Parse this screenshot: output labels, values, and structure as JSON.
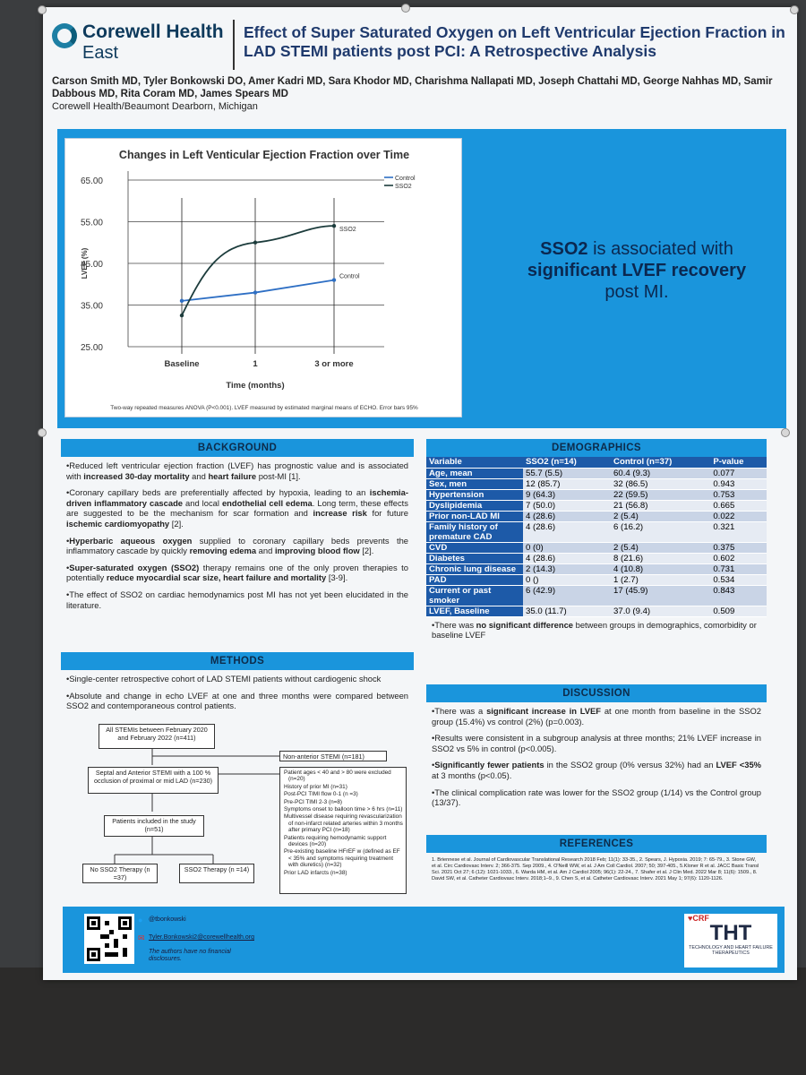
{
  "header": {
    "brand_name": "Corewell Health",
    "brand_sub": "East",
    "title": "Effect of Super Saturated Oxygen on Left Ventricular Ejection Fraction in LAD STEMI patients post PCI: A Retrospective Analysis",
    "authors": "Carson Smith MD, Tyler Bonkowski DO, Amer Kadri MD, Sara Khodor MD, Charishma Nallapati MD, Joseph Chattahi MD, George Nahhas MD, Samir Dabbous MD, Rita Coram MD, James Spears MD",
    "affiliation": "Corewell Health/Beaumont Dearborn, Michigan"
  },
  "key_message": {
    "part1": "SSO2",
    "part2": " is associated with ",
    "part3": "significant LVEF recovery",
    "part4": " post MI."
  },
  "chart_data": {
    "type": "line",
    "title": "Changes in Left Venticular Ejection Fraction over Time",
    "xlabel": "Time (months)",
    "ylabel": "LVEF (%)",
    "categories": [
      "Baseline",
      "1",
      "3 or more"
    ],
    "y_ticks": [
      "25.00",
      "35.00",
      "45.00",
      "55.00",
      "65.00"
    ],
    "ylim": [
      25,
      65
    ],
    "series": [
      {
        "name": "Control",
        "values": [
          36,
          38,
          41
        ],
        "color": "#2e6fc4"
      },
      {
        "name": "SSO2",
        "values": [
          32.5,
          50,
          54
        ],
        "color": "#1c3c3c"
      }
    ],
    "legend": [
      "Control",
      "SSO2"
    ],
    "annotations": [
      "SSO2",
      "Control"
    ],
    "footnote": "Two-way repeated measures ANOVA (P<0.001). LVEF measured by estimated marginal means of ECHO. Error bars 95%",
    "legend_position": "top-right",
    "grid": true
  },
  "background": {
    "heading": "BACKGROUND",
    "p1": [
      "•Reduced left ventricular ejection fraction (LVEF) has prognostic value and is associated with ",
      "increased 30-day mortality",
      " and ",
      "heart failure",
      " post-MI [1]."
    ],
    "p2": [
      "•Coronary capillary beds are preferentially affected by hypoxia, leading to an ",
      "ischemia-driven inflammatory cascade",
      " and local ",
      "endothelial cell edema",
      ". Long term, these effects are suggested to be the mechanism for scar formation and ",
      "increase risk",
      " for future ",
      "ischemic cardiomyopathy",
      " [2]."
    ],
    "p3": [
      "•",
      "Hyperbaric aqueous oxygen",
      " supplied to coronary capillary beds prevents the inflammatory cascade by quickly ",
      "removing edema",
      " and ",
      "improving blood flow",
      " [2]."
    ],
    "p4": [
      "•",
      "Super-saturated oxygen (SSO2)",
      " therapy remains one of the only proven therapies to potentially ",
      "reduce myocardial scar size, heart failure and mortality",
      " [3-9]."
    ],
    "p5": "•The effect of SSO2 on cardiac hemodynamics post MI has not yet been elucidated in the literature."
  },
  "methods": {
    "heading": "METHODS",
    "p1": "•Single-center retrospective cohort of LAD STEMI patients without cardiogenic shock",
    "p2": "•Absolute and change in echo LVEF at one and three months were compared between SSO2 and contemporaneous control patients.",
    "flow": {
      "box1": "All STEMIs between February 2020 and February 2022 (n=411)",
      "box2": "Non-anterior STEMI (n=181)",
      "box3": "Septal and Anterior STEMI with a 100 % occlusion of proximal or mid LAD (n=230)",
      "exclusions": [
        "Patient ages < 40 and > 80 were excluded (n=20)",
        "History of prior MI (n=31)",
        "Post-PCI TIMI flow 0-1 (n =3)",
        "Pre-PCI TIMI 2-3 (n=8)",
        "Symptoms onset to balloon time > 6 hrs (n=11)",
        "Multivessel disease requiring revascularization of non-infarct related arteries within 3 months after primary PCI (n=18)",
        "Patients requiring hemodynamic support devices (n=20)",
        "Pre-existing baseline HFrEF w (defined as EF < 35% and symptoms requiring treatment with diuretics) (n=32)",
        "Prior LAD infarcts (n=38)"
      ],
      "box4": "Patients included in the study (n=51)",
      "box5": "No SSO2 Therapy (n =37)",
      "box6": "SSO2 Therapy (n =14)"
    }
  },
  "demographics": {
    "heading": "DEMOGRAPHICS",
    "columns": [
      "Variable",
      "SSO2 (n=14)",
      "Control (n=37)",
      "P-value"
    ],
    "rows": [
      [
        "Age, mean",
        "55.7 (5.5)",
        "60.4 (9.3)",
        "0.077"
      ],
      [
        "Sex, men",
        "12 (85.7)",
        "32 (86.5)",
        "0.943"
      ],
      [
        "Hypertension",
        "9 (64.3)",
        "22 (59.5)",
        "0.753"
      ],
      [
        "Dyslipidemia",
        "7 (50.0)",
        "21 (56.8)",
        "0.665"
      ],
      [
        "Prior non-LAD MI",
        "4 (28.6)",
        "2 (5.4)",
        "0.022"
      ],
      [
        "Family history of premature CAD",
        "4 (28.6)",
        "6 (16.2)",
        "0.321"
      ],
      [
        "CVD",
        "0 (0)",
        "2 (5.4)",
        "0.375"
      ],
      [
        "Diabetes",
        "4 (28.6)",
        "8 (21.6)",
        "0.602"
      ],
      [
        "Chronic lung disease",
        "2 (14.3)",
        "4 (10.8)",
        "0.731"
      ],
      [
        "PAD",
        "0 ()",
        "1 (2.7)",
        "0.534"
      ],
      [
        "Current or past smoker",
        "6 (42.9)",
        "17 (45.9)",
        "0.843"
      ],
      [
        "LVEF, Baseline",
        "35.0 (11.7)",
        "37.0 (9.4)",
        "0.509"
      ]
    ],
    "note": [
      "•There was ",
      "no significant difference",
      " between groups in demographics, comorbidity or baseline LVEF"
    ]
  },
  "discussion": {
    "heading": "DISCUSSION",
    "p1": [
      "•There was a ",
      "significant increase in LVEF",
      " at one month from baseline in the SSO2 group (15.4%) vs control (2%) (p=0.003)."
    ],
    "p2": "•Results were consistent in a subgroup analysis at three months; 21% LVEF increase in SSO2 vs 5% in control (p<0.005).",
    "p3": [
      "•",
      "Significantly fewer patients",
      " in the SSO2 group (0% versus 32%) had an ",
      "LVEF <35%",
      " at 3 months (p<0.05)."
    ],
    "p4": "•The clinical complication rate was lower for the SSO2 group (1/14) vs the Control group (13/37)."
  },
  "references": {
    "heading": "REFERENCES",
    "text": "1. Briennese et al. Journal of Cardiovascular Translational Research 2018 Feb; 11(1): 33-35., 2. Spears, J. Hypoxia. 2019; 7: 65-79., 3. Stone GW, et al. Circ Cardiovasc Interv. 2; 366-375. Sep 2009., 4. O'Neill WW, et al. J Am Coll Cardiol. 2007; 50; 397-405., 5.Kloner R et al. JACC Basic Transl Sci. 2021 Oct 27; 6 (12): 1021-1033., 6. Warda HM, et al. Am J Cardiol 2005; 96(1): 22-24., 7. Shafer et al. J Clin Med. 2022 Mar 8; 11(6): 1509., 8. David SW, et al. Catheter Cardiovasc Interv. 2018;1–9., 9. Chen S, et al. Catheter Cardiovasc Interv. 2021 May 1; 97(6): 1120-1126."
  },
  "footer": {
    "twitter": "@tbonkowski",
    "email": "Tyler.Bonkowski2@corewellhealth.org",
    "disclosure": "The authors have no financial disclosures.",
    "crf": "CRF",
    "tht": "THT",
    "tht_sub": "TECHNOLOGY AND HEART FAILURE THERAPEUTICS",
    "colors": {
      "accent": "#1a95dc",
      "header_navy": "#1d5aa8",
      "title": "#1f3a6d"
    }
  }
}
